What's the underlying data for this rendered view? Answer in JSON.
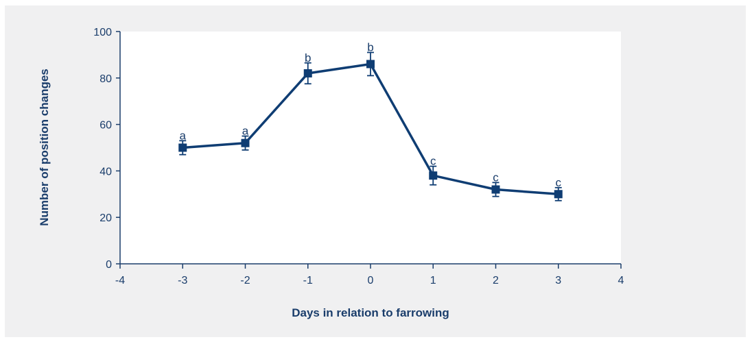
{
  "colors": {
    "series": "#0f3d73",
    "axis_text": "#1a3d6b",
    "panel_bg": "#f0f0f1",
    "plot_bg": "#ffffff"
  },
  "chart_data": {
    "type": "line",
    "title": "",
    "xlabel": "Days in relation to farrowing",
    "ylabel": "Number of position changes",
    "xlim": [
      -4,
      4
    ],
    "ylim": [
      0,
      100
    ],
    "x_ticks": [
      -4,
      -3,
      -2,
      -1,
      0,
      1,
      2,
      3,
      4
    ],
    "y_ticks": [
      0,
      20,
      40,
      60,
      80,
      100
    ],
    "grid": false,
    "legend": "none",
    "series": [
      {
        "x": [
          -3,
          -2,
          -1,
          0,
          1,
          2,
          3
        ],
        "y": [
          50,
          52,
          82,
          86,
          38,
          32,
          30
        ],
        "error": [
          3,
          3,
          4.5,
          5,
          4,
          3,
          2.8
        ],
        "annotations": [
          "a",
          "a",
          "b",
          "b",
          "c",
          "c",
          "c"
        ],
        "marker": "square"
      }
    ]
  }
}
